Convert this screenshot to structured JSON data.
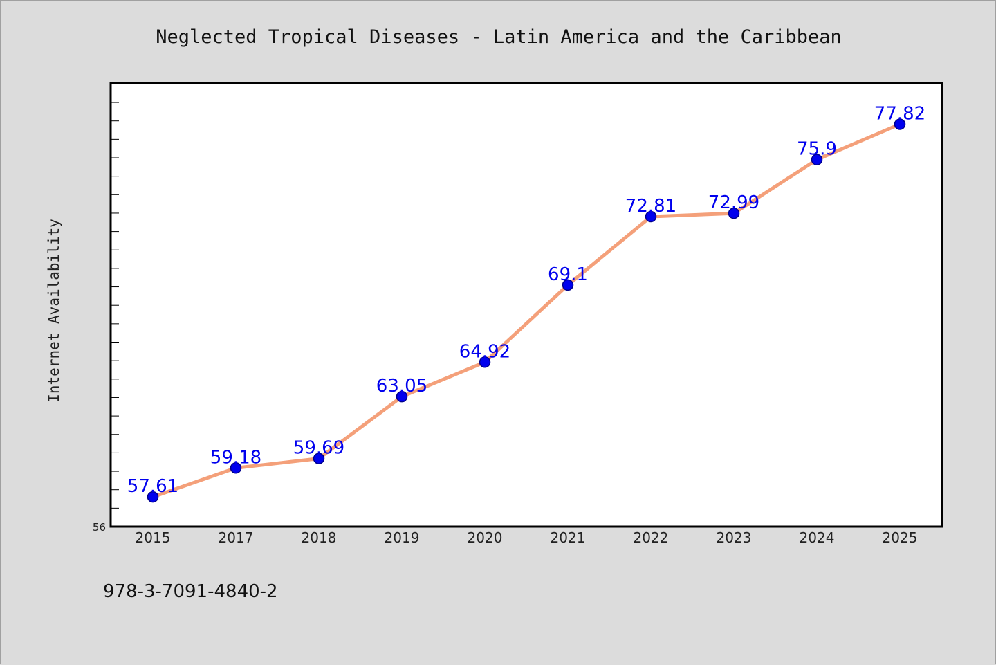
{
  "chart_data": {
    "type": "line",
    "title": "Neglected Tropical Diseases - Latin America and the Caribbean",
    "xlabel": "",
    "ylabel": "Internet Availability",
    "categories": [
      "2015",
      "2017",
      "2018",
      "2019",
      "2020",
      "2021",
      "2022",
      "2023",
      "2024",
      "2025"
    ],
    "series": [
      {
        "values": [
          57.61,
          59.18,
          59.69,
          63.05,
          64.92,
          69.1,
          72.81,
          72.99,
          75.9,
          77.82
        ],
        "data_labels": [
          "57.61",
          "59.18",
          "59.69",
          "63.05",
          "64.92",
          "69.1",
          "72.81",
          "72.99",
          "75.9",
          "77.82"
        ]
      }
    ],
    "ylim": [
      56,
      80
    ],
    "y_tick_labels": [
      "56"
    ],
    "grid": false,
    "legend": "none",
    "colors": {
      "line": "#f4a07a",
      "marker": "#0000ee",
      "marker_edge": "#00008b",
      "label": "#0000ee",
      "plot_bg": "#ffffff",
      "page_bg": "#dcdcdc"
    }
  },
  "footer": {
    "code": "978-3-7091-4840-2"
  }
}
